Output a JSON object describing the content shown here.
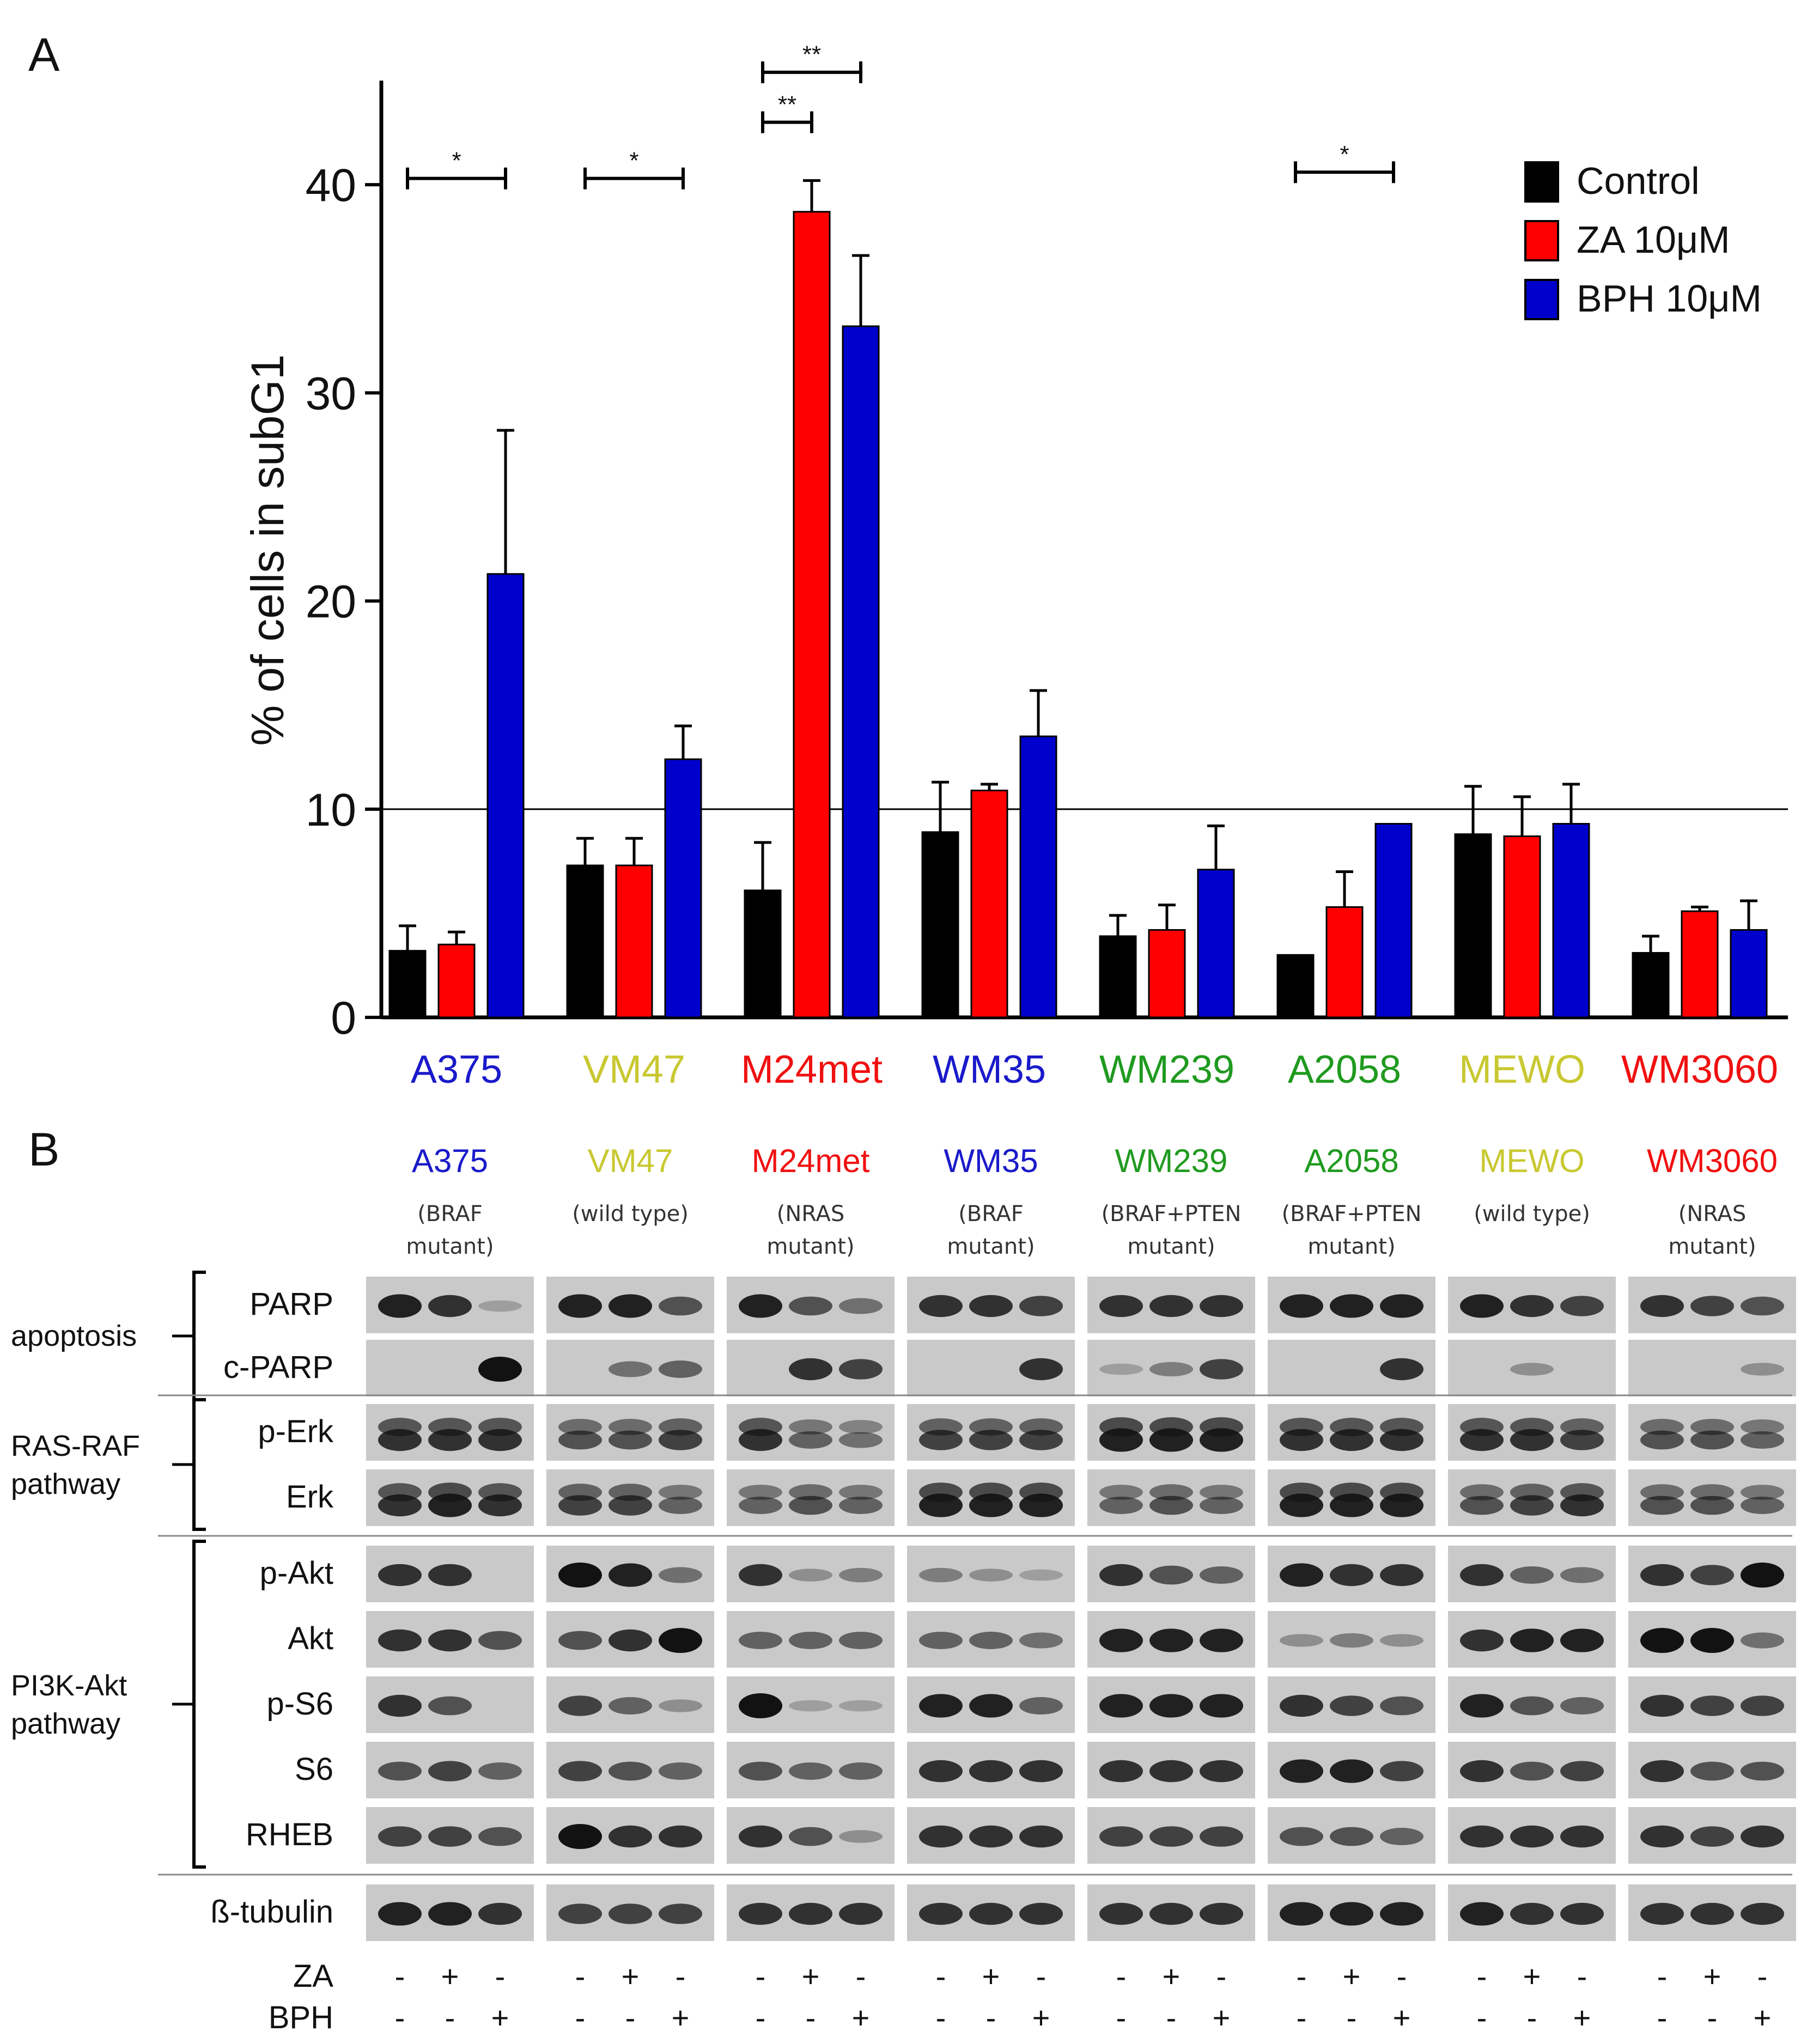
{
  "panels": {
    "a": "A",
    "b": "B"
  },
  "chart_data": {
    "type": "bar",
    "ylabel": "% of cells in subG1",
    "ylim": [
      0,
      45
    ],
    "yticks": [
      "0",
      "10",
      "20",
      "30",
      "40"
    ],
    "reference_line": 10,
    "categories": [
      "A375",
      "VM47",
      "M24met",
      "WM35",
      "WM239",
      "A2058",
      "MEWO",
      "WM3060"
    ],
    "category_colors": [
      "#1a1aca",
      "#c8c832",
      "#f01010",
      "#1a1aca",
      "#1f9a1f",
      "#1f9a1f",
      "#c8c832",
      "#f01010"
    ],
    "series": [
      {
        "name": "Control",
        "color": "#000000",
        "values": [
          3.2,
          7.3,
          6.1,
          8.9,
          3.9,
          3.0,
          8.8,
          3.1
        ],
        "errors": [
          1.2,
          1.3,
          2.3,
          2.4,
          1.0,
          0,
          2.3,
          0.8
        ]
      },
      {
        "name": "ZA 10μM",
        "color": "#ff0000",
        "values": [
          3.5,
          7.3,
          38.7,
          10.9,
          4.2,
          5.3,
          8.7,
          5.1
        ],
        "errors": [
          0.6,
          1.3,
          1.5,
          0.3,
          1.2,
          1.7,
          1.9,
          0.2
        ]
      },
      {
        "name": "BPH 10μM",
        "color": "#0000cc",
        "values": [
          21.3,
          12.4,
          33.2,
          13.5,
          7.1,
          9.3,
          9.3,
          4.2
        ],
        "errors": [
          6.9,
          1.6,
          3.4,
          2.2,
          2.1,
          0,
          1.9,
          1.4
        ]
      }
    ],
    "significance": [
      {
        "group": 0,
        "from": 0,
        "to": 2,
        "y": 40.3,
        "label": "*"
      },
      {
        "group": 1,
        "from": 0,
        "to": 2,
        "y": 40.3,
        "label": "*"
      },
      {
        "group": 2,
        "from": 0,
        "to": 1,
        "y": 43.0,
        "label": "**"
      },
      {
        "group": 2,
        "from": 0,
        "to": 2,
        "y": 45.4,
        "label": "**"
      },
      {
        "group": 5,
        "from": 0,
        "to": 2,
        "y": 40.6,
        "label": "*"
      }
    ]
  },
  "western": {
    "cell_lines": [
      {
        "name": "A375",
        "color": "#1a1aca",
        "mutation": [
          "(BRAF",
          "mutant)"
        ]
      },
      {
        "name": "VM47",
        "color": "#c8c832",
        "mutation": [
          "(wild type)"
        ]
      },
      {
        "name": "M24met",
        "color": "#f01010",
        "mutation": [
          "(NRAS",
          "mutant)"
        ]
      },
      {
        "name": "WM35",
        "color": "#1a1aca",
        "mutation": [
          "(BRAF",
          "mutant)"
        ]
      },
      {
        "name": "WM239",
        "color": "#1f9a1f",
        "mutation": [
          "(BRAF+PTEN",
          "mutant)"
        ]
      },
      {
        "name": "A2058",
        "color": "#1f9a1f",
        "mutation": [
          "(BRAF+PTEN",
          "mutant)"
        ]
      },
      {
        "name": "MEWO",
        "color": "#c8c832",
        "mutation": [
          "(wild type)"
        ]
      },
      {
        "name": "WM3060",
        "color": "#f01010",
        "mutation": [
          "(NRAS",
          "mutant)"
        ]
      }
    ],
    "groups": [
      {
        "label": [
          "apoptosis"
        ],
        "proteins": [
          "PARP",
          "c-PARP"
        ]
      },
      {
        "label": [
          "RAS-RAF",
          "pathway"
        ],
        "proteins": [
          "p-Erk",
          "Erk"
        ]
      },
      {
        "label": [
          "PI3K-Akt",
          "pathway"
        ],
        "proteins": [
          "p-Akt",
          "Akt",
          "p-S6",
          "S6",
          "RHEB"
        ]
      },
      {
        "label": [],
        "proteins": [
          "ß-tubulin"
        ]
      }
    ],
    "treatments": [
      {
        "label": "ZA",
        "marks": [
          "-",
          "+",
          "-"
        ]
      },
      {
        "label": "BPH",
        "marks": [
          "-",
          "-",
          "+"
        ]
      }
    ],
    "band_intensity": {
      "PARP": [
        [
          0.9,
          0.8,
          0.1
        ],
        [
          0.9,
          0.9,
          0.6
        ],
        [
          0.9,
          0.6,
          0.4
        ],
        [
          0.8,
          0.8,
          0.7
        ],
        [
          0.8,
          0.8,
          0.8
        ],
        [
          0.9,
          0.9,
          0.9
        ],
        [
          0.9,
          0.8,
          0.7
        ],
        [
          0.8,
          0.7,
          0.6
        ]
      ],
      "c-PARP": [
        [
          0,
          0,
          1.0
        ],
        [
          0,
          0.4,
          0.5
        ],
        [
          0,
          0.8,
          0.7
        ],
        [
          0,
          0,
          0.8
        ],
        [
          0.1,
          0.3,
          0.7
        ],
        [
          0,
          0,
          0.8
        ],
        [
          0,
          0.2,
          0
        ],
        [
          0,
          0,
          0.2
        ]
      ],
      "p-Erk": [
        [
          0.8,
          0.8,
          0.8
        ],
        [
          0.6,
          0.6,
          0.7
        ],
        [
          0.8,
          0.5,
          0.4
        ],
        [
          0.7,
          0.7,
          0.7
        ],
        [
          0.9,
          0.9,
          0.9
        ],
        [
          0.8,
          0.8,
          0.8
        ],
        [
          0.8,
          0.8,
          0.7
        ],
        [
          0.6,
          0.6,
          0.5
        ]
      ],
      "Erk": [
        [
          0.8,
          0.9,
          0.8
        ],
        [
          0.7,
          0.7,
          0.5
        ],
        [
          0.5,
          0.6,
          0.5
        ],
        [
          0.9,
          0.9,
          0.9
        ],
        [
          0.5,
          0.6,
          0.5
        ],
        [
          0.9,
          0.9,
          0.9
        ],
        [
          0.6,
          0.7,
          0.8
        ],
        [
          0.6,
          0.6,
          0.5
        ]
      ],
      "p-Akt": [
        [
          0.8,
          0.8,
          0
        ],
        [
          1.0,
          0.9,
          0.4
        ],
        [
          0.8,
          0.2,
          0.3
        ],
        [
          0.3,
          0.2,
          0.1
        ],
        [
          0.8,
          0.6,
          0.5
        ],
        [
          0.9,
          0.8,
          0.8
        ],
        [
          0.8,
          0.5,
          0.4
        ],
        [
          0.8,
          0.7,
          1.0
        ]
      ],
      "Akt": [
        [
          0.8,
          0.8,
          0.6
        ],
        [
          0.6,
          0.8,
          1.0
        ],
        [
          0.5,
          0.5,
          0.5
        ],
        [
          0.5,
          0.5,
          0.4
        ],
        [
          0.9,
          0.9,
          0.9
        ],
        [
          0.2,
          0.3,
          0.2
        ],
        [
          0.8,
          0.9,
          0.9
        ],
        [
          1.0,
          1.0,
          0.4
        ]
      ],
      "p-S6": [
        [
          0.8,
          0.6,
          0
        ],
        [
          0.7,
          0.5,
          0.2
        ],
        [
          1.0,
          0.1,
          0.1
        ],
        [
          0.9,
          0.9,
          0.5
        ],
        [
          0.9,
          0.9,
          0.9
        ],
        [
          0.8,
          0.7,
          0.6
        ],
        [
          0.9,
          0.6,
          0.5
        ],
        [
          0.8,
          0.7,
          0.7
        ]
      ],
      "S6": [
        [
          0.6,
          0.7,
          0.5
        ],
        [
          0.7,
          0.6,
          0.5
        ],
        [
          0.6,
          0.5,
          0.5
        ],
        [
          0.8,
          0.8,
          0.8
        ],
        [
          0.8,
          0.8,
          0.8
        ],
        [
          0.9,
          0.9,
          0.7
        ],
        [
          0.8,
          0.6,
          0.7
        ],
        [
          0.8,
          0.6,
          0.6
        ]
      ],
      "RHEB": [
        [
          0.7,
          0.7,
          0.6
        ],
        [
          1.0,
          0.8,
          0.8
        ],
        [
          0.8,
          0.6,
          0.2
        ],
        [
          0.8,
          0.8,
          0.8
        ],
        [
          0.7,
          0.7,
          0.7
        ],
        [
          0.6,
          0.6,
          0.5
        ],
        [
          0.8,
          0.8,
          0.8
        ],
        [
          0.8,
          0.7,
          0.8
        ]
      ],
      "ß-tubulin": [
        [
          0.9,
          0.9,
          0.8
        ],
        [
          0.7,
          0.7,
          0.7
        ],
        [
          0.8,
          0.8,
          0.8
        ],
        [
          0.8,
          0.8,
          0.8
        ],
        [
          0.8,
          0.8,
          0.8
        ],
        [
          0.9,
          0.9,
          0.9
        ],
        [
          0.9,
          0.8,
          0.8
        ],
        [
          0.8,
          0.8,
          0.8
        ]
      ]
    }
  }
}
